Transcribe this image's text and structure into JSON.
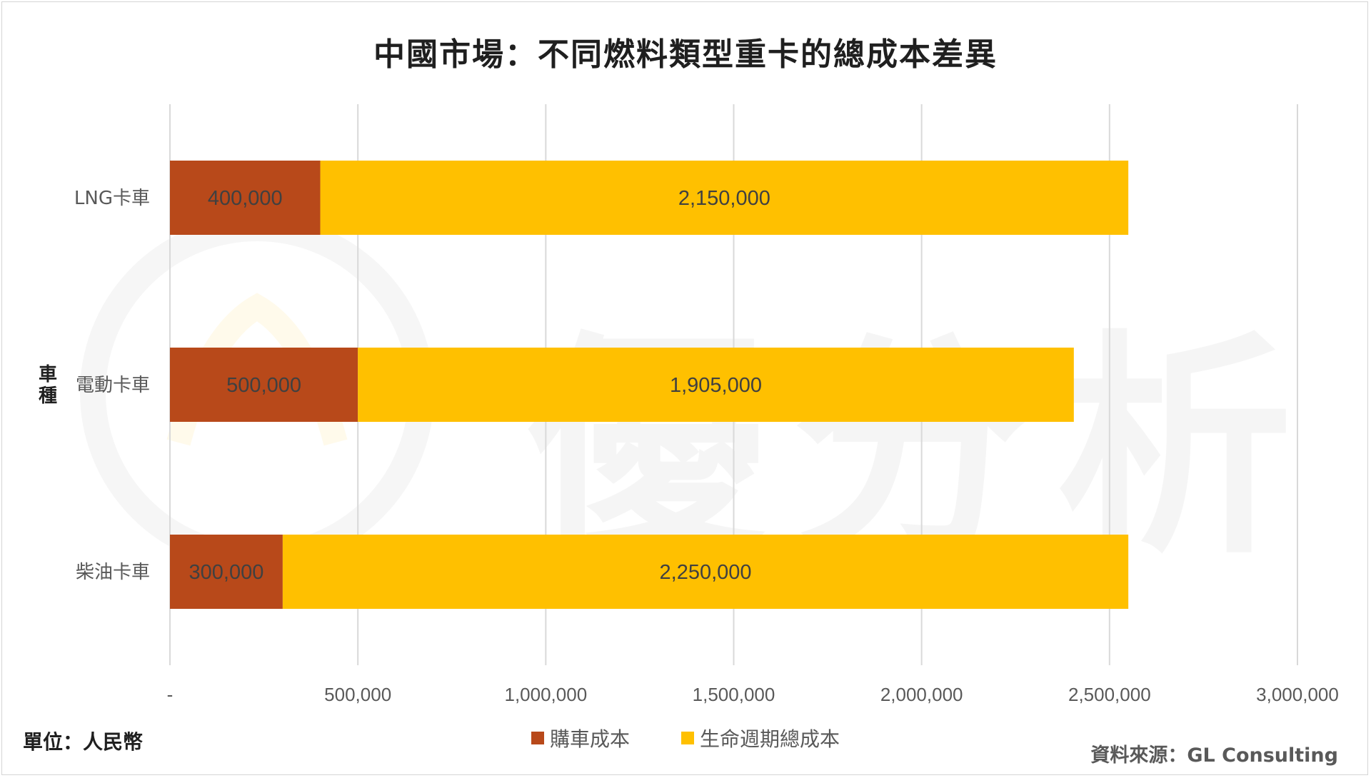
{
  "watermark": "優分析",
  "footer": {
    "unit": "單位：人民幣",
    "source": "資料來源：GL Consulting"
  },
  "colors": {
    "purchase": "#B8491A",
    "lifecycle": "#FFC000",
    "grid": "#D9D9D9",
    "label": "#404040",
    "tick": "#595959"
  },
  "chart_data": {
    "type": "bar",
    "orientation": "horizontal",
    "stacked": true,
    "title": "中國市場：不同燃料類型重卡的總成本差異",
    "ylabel": "車種",
    "xlabel": "",
    "categories": [
      "LNG卡車",
      "電動卡車",
      "柴油卡車"
    ],
    "series": [
      {
        "name": "購車成本",
        "values": [
          400000,
          500000,
          300000
        ],
        "labels": [
          "400,000",
          "500,000",
          "300,000"
        ]
      },
      {
        "name": "生命週期總成本",
        "values": [
          2150000,
          1905000,
          2250000
        ],
        "labels": [
          "2,150,000",
          "1,905,000",
          "2,250,000"
        ]
      }
    ],
    "xlim": [
      0,
      3000000
    ],
    "xticks": [
      0,
      500000,
      1000000,
      1500000,
      2000000,
      2500000,
      3000000
    ],
    "xtick_labels": [
      "-",
      "500,000",
      "1,000,000",
      "1,500,000",
      "2,000,000",
      "2,500,000",
      "3,000,000"
    ],
    "grid": true,
    "legend_position": "bottom"
  }
}
